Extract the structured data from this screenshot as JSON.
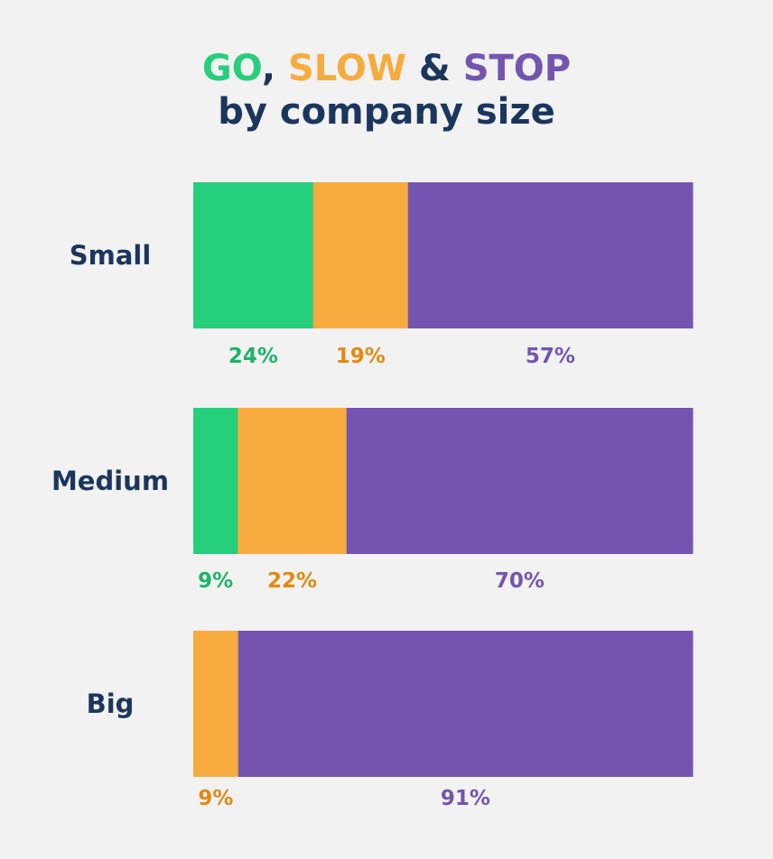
{
  "chart_data": {
    "type": "bar",
    "orientation": "horizontal-stacked",
    "title_parts": [
      {
        "text": "GO",
        "color": "#26cf7c"
      },
      {
        "text": ", ",
        "color": "#1b365d"
      },
      {
        "text": "SLOW",
        "color": "#f7ab3e"
      },
      {
        "text": " & ",
        "color": "#1b365d"
      },
      {
        "text": "STOP",
        "color": "#7355b1"
      }
    ],
    "subtitle": "by company size",
    "categories": [
      "Small",
      "Medium",
      "Big"
    ],
    "series": [
      {
        "key": "go",
        "values": [
          24,
          9,
          0
        ],
        "color": "#26cf7c",
        "label_color": "#1fb26a"
      },
      {
        "key": "slow",
        "values": [
          19,
          22,
          9
        ],
        "color": "#f7ab3e",
        "label_color": "#e3890f"
      },
      {
        "key": "stop",
        "values": [
          57,
          70,
          91
        ],
        "color": "#7355b1",
        "label_color": "#7355b1"
      }
    ],
    "unit": "%",
    "grid": false,
    "legend": "none (title colors)"
  },
  "colors": {
    "background": "#f2f2f2",
    "text": "#1b365d"
  }
}
